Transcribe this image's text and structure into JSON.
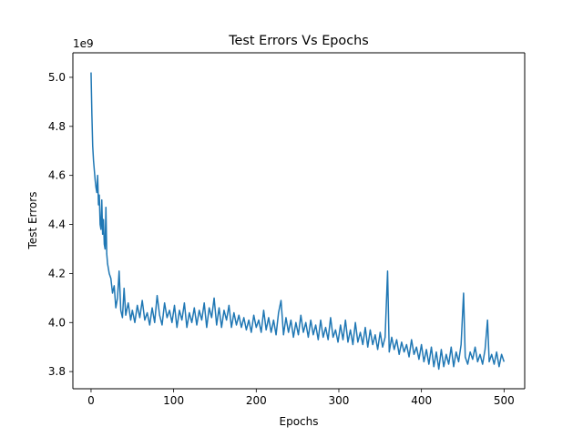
{
  "chart_data": {
    "type": "line",
    "title": "Test Errors Vs Epochs",
    "xlabel": "Epochs",
    "ylabel": "Test Errors",
    "offset_label": "1e9",
    "xlim": [
      -22,
      525
    ],
    "ylim": [
      3.73,
      5.1
    ],
    "xticks": [
      0,
      100,
      200,
      300,
      400,
      500
    ],
    "yticks": [
      3.8,
      4.0,
      4.2,
      4.4,
      4.6,
      4.8,
      5.0
    ],
    "ytick_labels": [
      "3.8",
      "4.0",
      "4.2",
      "4.4",
      "4.6",
      "4.8",
      "5.0"
    ],
    "grid": false,
    "legend": "none",
    "series": [
      {
        "color": "#1f77b4",
        "points": [
          [
            0,
            5.02
          ],
          [
            1,
            4.85
          ],
          [
            2,
            4.72
          ],
          [
            3,
            4.66
          ],
          [
            4,
            4.62
          ],
          [
            5,
            4.58
          ],
          [
            6,
            4.55
          ],
          [
            7,
            4.53
          ],
          [
            8,
            4.6
          ],
          [
            9,
            4.48
          ],
          [
            10,
            4.52
          ],
          [
            11,
            4.4
          ],
          [
            12,
            4.38
          ],
          [
            13,
            4.5
          ],
          [
            14,
            4.36
          ],
          [
            15,
            4.42
          ],
          [
            16,
            4.32
          ],
          [
            17,
            4.3
          ],
          [
            18,
            4.47
          ],
          [
            19,
            4.28
          ],
          [
            20,
            4.24
          ],
          [
            22,
            4.2
          ],
          [
            24,
            4.18
          ],
          [
            26,
            4.12
          ],
          [
            28,
            4.15
          ],
          [
            30,
            4.06
          ],
          [
            32,
            4.1
          ],
          [
            34,
            4.21
          ],
          [
            36,
            4.05
          ],
          [
            38,
            4.02
          ],
          [
            40,
            4.14
          ],
          [
            42,
            4.03
          ],
          [
            45,
            4.08
          ],
          [
            48,
            4.01
          ],
          [
            50,
            4.05
          ],
          [
            53,
            4.0
          ],
          [
            56,
            4.07
          ],
          [
            59,
            4.02
          ],
          [
            62,
            4.09
          ],
          [
            65,
            4.01
          ],
          [
            68,
            4.04
          ],
          [
            71,
            3.99
          ],
          [
            74,
            4.06
          ],
          [
            77,
            4.0
          ],
          [
            80,
            4.11
          ],
          [
            83,
            4.03
          ],
          [
            86,
            3.99
          ],
          [
            89,
            4.08
          ],
          [
            92,
            4.02
          ],
          [
            95,
            4.05
          ],
          [
            98,
            4.0
          ],
          [
            101,
            4.07
          ],
          [
            104,
            3.98
          ],
          [
            107,
            4.05
          ],
          [
            110,
            4.01
          ],
          [
            113,
            4.08
          ],
          [
            116,
            3.98
          ],
          [
            119,
            4.04
          ],
          [
            122,
            4.0
          ],
          [
            125,
            4.06
          ],
          [
            128,
            3.99
          ],
          [
            131,
            4.05
          ],
          [
            134,
            4.01
          ],
          [
            137,
            4.08
          ],
          [
            140,
            3.98
          ],
          [
            143,
            4.06
          ],
          [
            146,
            4.02
          ],
          [
            149,
            4.1
          ],
          [
            152,
            3.99
          ],
          [
            155,
            4.06
          ],
          [
            158,
            3.98
          ],
          [
            161,
            4.05
          ],
          [
            164,
            4.01
          ],
          [
            167,
            4.07
          ],
          [
            170,
            3.98
          ],
          [
            173,
            4.04
          ],
          [
            176,
            3.99
          ],
          [
            179,
            4.03
          ],
          [
            182,
            3.98
          ],
          [
            185,
            4.02
          ],
          [
            188,
            3.97
          ],
          [
            191,
            4.01
          ],
          [
            194,
            3.96
          ],
          [
            197,
            4.03
          ],
          [
            200,
            3.98
          ],
          [
            203,
            4.01
          ],
          [
            206,
            3.96
          ],
          [
            209,
            4.05
          ],
          [
            212,
            3.97
          ],
          [
            215,
            4.02
          ],
          [
            218,
            3.96
          ],
          [
            221,
            4.01
          ],
          [
            224,
            3.95
          ],
          [
            227,
            4.04
          ],
          [
            230,
            4.09
          ],
          [
            233,
            3.95
          ],
          [
            236,
            4.02
          ],
          [
            239,
            3.96
          ],
          [
            242,
            4.01
          ],
          [
            245,
            3.94
          ],
          [
            248,
            4.0
          ],
          [
            251,
            3.95
          ],
          [
            254,
            4.03
          ],
          [
            257,
            3.96
          ],
          [
            260,
            4.0
          ],
          [
            263,
            3.94
          ],
          [
            266,
            4.01
          ],
          [
            269,
            3.95
          ],
          [
            272,
            3.99
          ],
          [
            275,
            3.93
          ],
          [
            278,
            4.01
          ],
          [
            281,
            3.94
          ],
          [
            284,
            3.98
          ],
          [
            287,
            3.93
          ],
          [
            290,
            4.02
          ],
          [
            293,
            3.94
          ],
          [
            296,
            3.97
          ],
          [
            299,
            3.92
          ],
          [
            302,
            3.99
          ],
          [
            305,
            3.93
          ],
          [
            308,
            4.01
          ],
          [
            311,
            3.92
          ],
          [
            314,
            3.97
          ],
          [
            317,
            3.91
          ],
          [
            320,
            4.0
          ],
          [
            323,
            3.92
          ],
          [
            326,
            3.96
          ],
          [
            329,
            3.91
          ],
          [
            332,
            3.98
          ],
          [
            335,
            3.9
          ],
          [
            338,
            3.97
          ],
          [
            341,
            3.91
          ],
          [
            344,
            3.95
          ],
          [
            347,
            3.89
          ],
          [
            350,
            3.96
          ],
          [
            353,
            3.9
          ],
          [
            356,
            3.94
          ],
          [
            359,
            4.21
          ],
          [
            361,
            3.88
          ],
          [
            364,
            3.94
          ],
          [
            367,
            3.89
          ],
          [
            370,
            3.93
          ],
          [
            373,
            3.87
          ],
          [
            376,
            3.92
          ],
          [
            379,
            3.88
          ],
          [
            382,
            3.91
          ],
          [
            385,
            3.86
          ],
          [
            388,
            3.93
          ],
          [
            391,
            3.87
          ],
          [
            394,
            3.9
          ],
          [
            397,
            3.85
          ],
          [
            400,
            3.91
          ],
          [
            403,
            3.84
          ],
          [
            406,
            3.89
          ],
          [
            409,
            3.83
          ],
          [
            412,
            3.9
          ],
          [
            415,
            3.82
          ],
          [
            418,
            3.88
          ],
          [
            421,
            3.81
          ],
          [
            424,
            3.89
          ],
          [
            427,
            3.82
          ],
          [
            430,
            3.87
          ],
          [
            433,
            3.83
          ],
          [
            436,
            3.9
          ],
          [
            439,
            3.82
          ],
          [
            442,
            3.88
          ],
          [
            445,
            3.84
          ],
          [
            448,
            3.91
          ],
          [
            451,
            4.12
          ],
          [
            453,
            3.86
          ],
          [
            456,
            3.83
          ],
          [
            459,
            3.88
          ],
          [
            462,
            3.85
          ],
          [
            465,
            3.9
          ],
          [
            468,
            3.84
          ],
          [
            471,
            3.87
          ],
          [
            474,
            3.83
          ],
          [
            477,
            3.89
          ],
          [
            480,
            4.01
          ],
          [
            482,
            3.84
          ],
          [
            485,
            3.87
          ],
          [
            488,
            3.83
          ],
          [
            491,
            3.88
          ],
          [
            494,
            3.82
          ],
          [
            497,
            3.87
          ],
          [
            500,
            3.84
          ]
        ]
      }
    ]
  }
}
